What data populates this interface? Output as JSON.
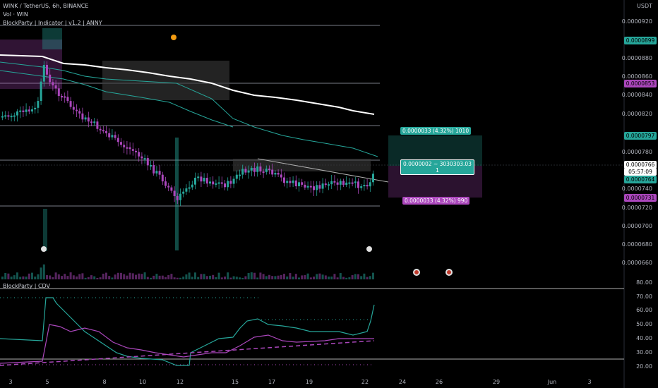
{
  "header": {
    "symbol_line": "WINK / TetherUS, 6h, BINANCE",
    "vol_label": "Vol · WIN",
    "indicator_label": "BlockParty | Indicator | v1.2 | ANNY"
  },
  "price_axis": {
    "currency": "USDT",
    "labels": [
      "0.0000920",
      "0.0000880",
      "0.0000860",
      "0.0000840",
      "0.0000820",
      "0.0000780",
      "0.0000740",
      "0.0000720",
      "0.0000700",
      "0.0000680",
      "0.0000660"
    ],
    "tags": [
      {
        "text": "0.0000899",
        "color": "#26a69a"
      },
      {
        "text": "0.0000853",
        "color": "#ab47bc"
      },
      {
        "text": "0.0000797",
        "color": "#26a69a"
      },
      {
        "text": "0.0000766",
        "color": "#ffffff"
      },
      {
        "text": "05:57:09",
        "color": "#ffffff"
      },
      {
        "text": "0.0000764",
        "color": "#26a69a"
      },
      {
        "text": "0.0000731",
        "color": "#ab47bc"
      }
    ]
  },
  "trade_boxes": {
    "target": "0.0000033 (4.32%) 1010",
    "entry_line1": "0.0000002 ~ 3030303.03",
    "entry_line2": "1",
    "stop": "0.0000033 (4.32%) 990"
  },
  "sub_panel": {
    "label": "BlockParty | CDV",
    "axis_labels": [
      "80.00",
      "70.00",
      "60.00",
      "50.00",
      "40.00",
      "30.00",
      "20.00"
    ]
  },
  "x_axis": {
    "labels": [
      "3",
      "5",
      "8",
      "10",
      "12",
      "15",
      "17",
      "19",
      "22",
      "24",
      "26",
      "29",
      "Jun",
      "3"
    ]
  },
  "colors": {
    "bull": "#26a69a",
    "bear": "#ab47bc",
    "background": "#000000"
  }
}
